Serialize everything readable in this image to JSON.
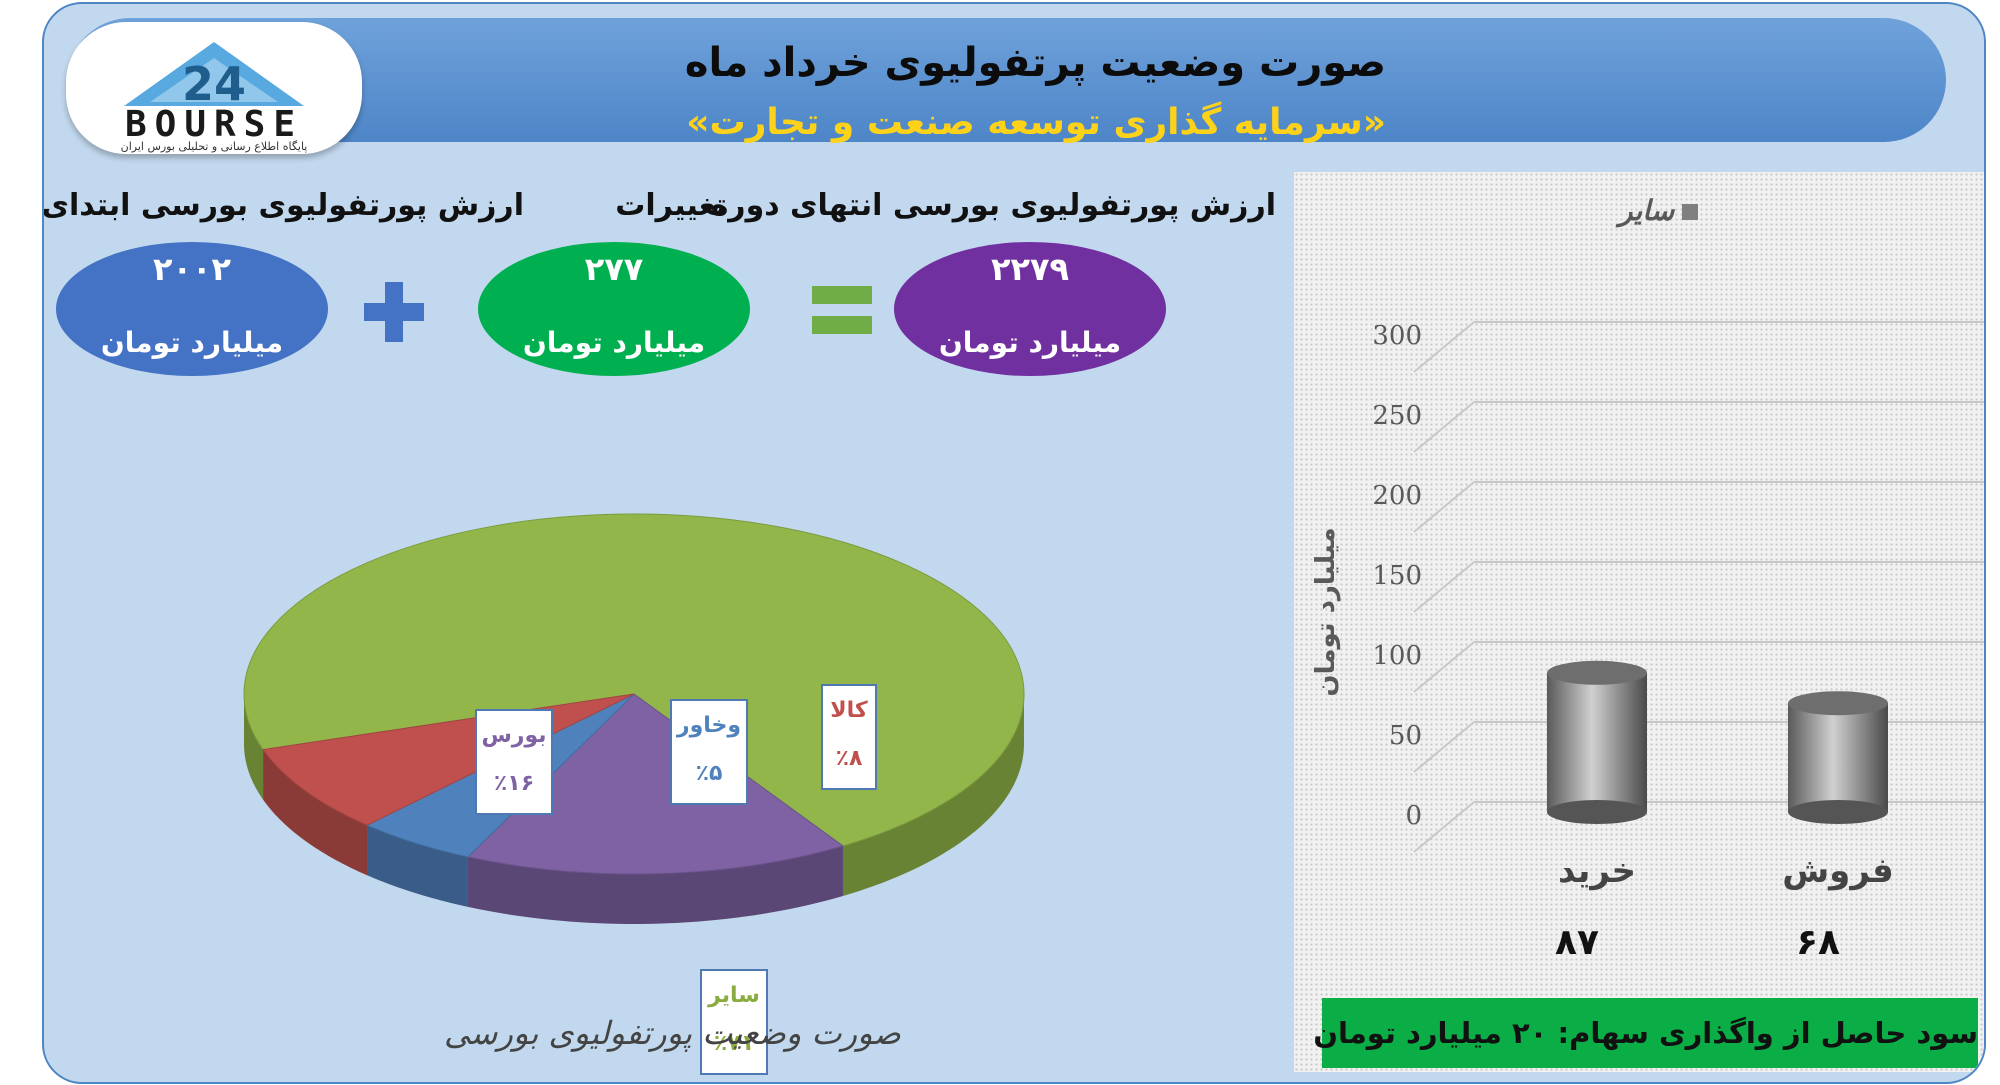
{
  "header": {
    "title": "صورت وضعیت پرتفولیوی خرداد ماه",
    "subtitle": "«سرمایه گذاری توسعه صنعت و تجارت»"
  },
  "logo": {
    "text": "BOURSE",
    "number": "24",
    "subtitle": "پایگاه اطلاع رسانی و تحلیلی بورس ایران"
  },
  "summary": {
    "start": {
      "label": "ارزش پورتفولیوی بورسی ابتدای دوره",
      "value": "۲۰۰۲",
      "unit": "میلیارد تومان",
      "color": "#4472c4"
    },
    "change": {
      "label": "تغییرات",
      "value": "۲۷۷",
      "unit": "میلیارد تومان",
      "color": "#00b050"
    },
    "end": {
      "label": "ارزش پورتفولیوی بورسی انتهای دوره",
      "value": "۲۲۷۹",
      "unit": "میلیارد تومان",
      "color": "#7030a0"
    }
  },
  "chart_data": [
    {
      "type": "pie",
      "title": "صورت وضعیت پورتفولیوی بورسی",
      "slices": [
        {
          "label": "سایر",
          "value": 71,
          "display": "٪۷۱",
          "color": "#92b64a"
        },
        {
          "label": "بورس",
          "value": 16,
          "display": "٪۱۶",
          "color": "#7e62a3"
        },
        {
          "label": "وخاور",
          "value": 5,
          "display": "٪۵",
          "color": "#4f81bd"
        },
        {
          "label": "کالا",
          "value": 8,
          "display": "٪۸",
          "color": "#c0504d"
        }
      ]
    },
    {
      "type": "bar",
      "categories": [
        "خرید",
        "فروش"
      ],
      "series": [
        {
          "name": "سایر",
          "values": [
            87,
            68
          ]
        }
      ],
      "value_labels": [
        "۸۷",
        "۶۸"
      ],
      "ylabel": "میلیارد تومان",
      "ylim": [
        0,
        300
      ],
      "yticks": [
        0,
        50,
        100,
        150,
        200,
        250,
        300
      ],
      "legend": "top",
      "grid": true
    }
  ],
  "profit_note": "سود حاصل از واگذاری سهام: ۲۰ میلیارد تومان"
}
